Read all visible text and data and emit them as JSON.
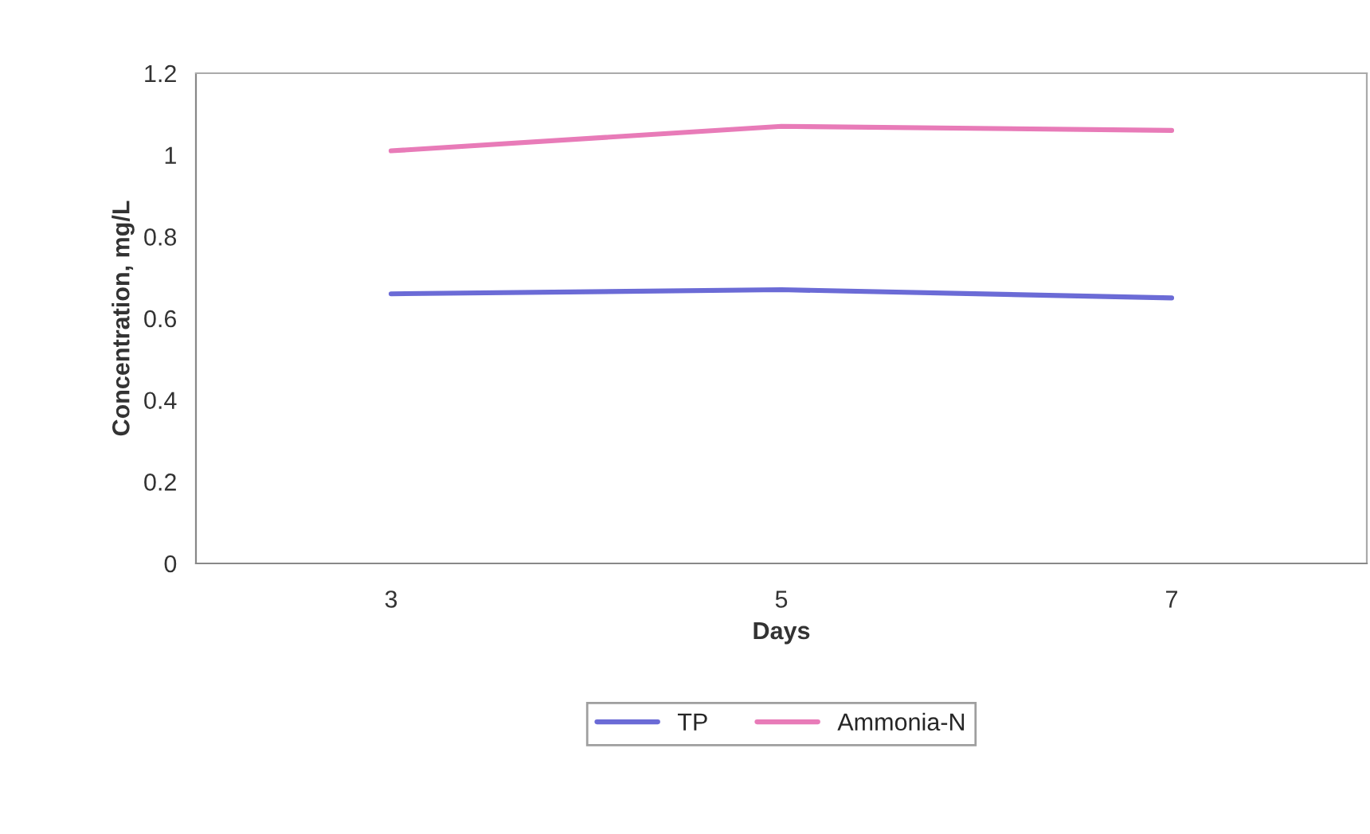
{
  "chart_data": {
    "type": "line",
    "xlabel": "Days",
    "ylabel": "Concentration, mg/L",
    "categories": [
      "3",
      "5",
      "7"
    ],
    "series": [
      {
        "name": "TP",
        "color": "#6b6bd6",
        "values": [
          0.66,
          0.67,
          0.65
        ]
      },
      {
        "name": "Ammonia-N",
        "color": "#e87bb8",
        "values": [
          1.01,
          1.07,
          1.06
        ]
      }
    ],
    "ylim": [
      0,
      1.2
    ],
    "yticks": [
      0,
      0.2,
      0.4,
      0.6,
      0.8,
      1,
      1.2
    ],
    "legend": "bottom",
    "grid": false,
    "marker": "none",
    "line_style": "solid"
  }
}
